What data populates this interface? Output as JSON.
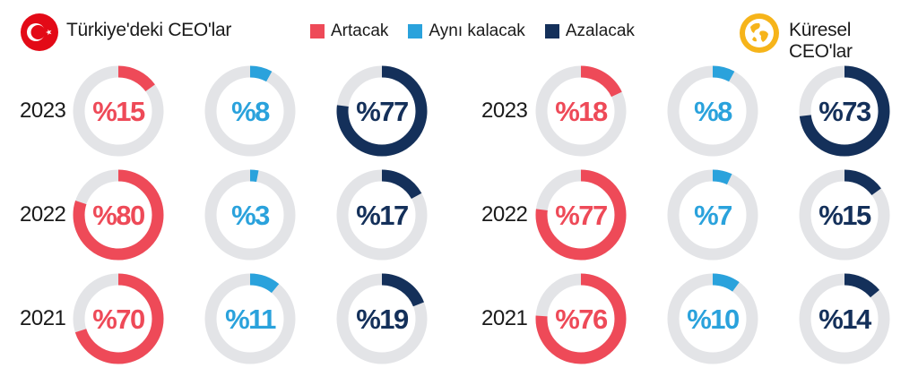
{
  "colors": {
    "artacak": "#ee4a58",
    "ayni": "#2aa2dc",
    "azalacak": "#14305a",
    "track": "#e3e4e7"
  },
  "header": {
    "turkey_title": "Türkiye'deki CEO'lar",
    "global_title": "Küresel CEO'lar"
  },
  "legend": [
    {
      "label": "Artacak",
      "color": "#ee4a58"
    },
    {
      "label": "Aynı kalacak",
      "color": "#2aa2dc"
    },
    {
      "label": "Azalacak",
      "color": "#14305a"
    }
  ],
  "years": [
    "2023",
    "2022",
    "2021"
  ],
  "chart_data": [
    {
      "type": "pie",
      "group": "Türkiye'deki CEO'lar",
      "categories": [
        "2023",
        "2022",
        "2021"
      ],
      "series": [
        {
          "name": "Artacak",
          "values": [
            15,
            80,
            70
          ]
        },
        {
          "name": "Aynı kalacak",
          "values": [
            8,
            3,
            11
          ]
        },
        {
          "name": "Azalacak",
          "values": [
            77,
            17,
            19
          ]
        }
      ]
    },
    {
      "type": "pie",
      "group": "Küresel CEO'lar",
      "categories": [
        "2023",
        "2022",
        "2021"
      ],
      "series": [
        {
          "name": "Artacak",
          "values": [
            18,
            77,
            76
          ]
        },
        {
          "name": "Aynı kalacak",
          "values": [
            8,
            7,
            10
          ]
        },
        {
          "name": "Azalacak",
          "values": [
            73,
            15,
            14
          ]
        }
      ]
    }
  ]
}
